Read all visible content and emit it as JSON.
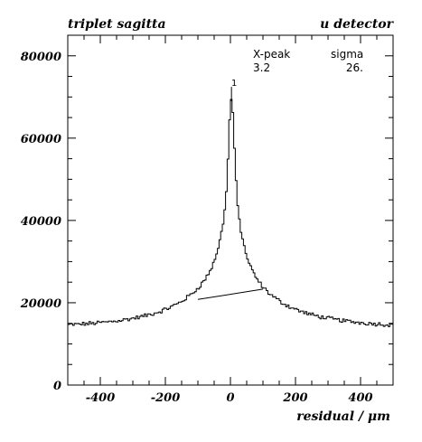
{
  "header": {
    "title_left": "triplet sagitta",
    "title_right": "u detector"
  },
  "chart_data": {
    "type": "histogram",
    "xlabel": "residual / μm",
    "ylabel": "",
    "xlim": [
      -500,
      500
    ],
    "ylim": [
      0,
      85000
    ],
    "x_ticks": [
      -400,
      -200,
      0,
      200,
      400
    ],
    "x_tick_labels": [
      "-400",
      "-200",
      "0",
      "200",
      "400"
    ],
    "y_ticks": [
      0,
      20000,
      40000,
      60000,
      80000
    ],
    "y_tick_labels": [
      "0",
      "20000",
      "40000",
      "60000",
      "80000"
    ],
    "bin_width": 5,
    "background_model": {
      "base": 13500,
      "amplitude": 11000,
      "width": 160
    },
    "peak_model": {
      "center": 3.2,
      "amplitude": 45000,
      "core_width": 8,
      "tail_width": 32
    },
    "sample_points": [
      {
        "x": -500,
        "y": 13800
      },
      {
        "x": -400,
        "y": 14500
      },
      {
        "x": -300,
        "y": 15500
      },
      {
        "x": -200,
        "y": 16500
      },
      {
        "x": -100,
        "y": 19800
      },
      {
        "x": -50,
        "y": 26000
      },
      {
        "x": -20,
        "y": 40000
      },
      {
        "x": 0,
        "y": 66000
      },
      {
        "x": 3,
        "y": 68000
      },
      {
        "x": 20,
        "y": 48000
      },
      {
        "x": 50,
        "y": 30000
      },
      {
        "x": 100,
        "y": 22000
      },
      {
        "x": 200,
        "y": 17500
      },
      {
        "x": 300,
        "y": 15800
      },
      {
        "x": 400,
        "y": 15000
      },
      {
        "x": 500,
        "y": 14800
      }
    ],
    "fit_line": {
      "x1": -100,
      "y1": 20800,
      "x2": 100,
      "y2": 23300
    },
    "peak_marker": {
      "x": 3.2,
      "y": 68500,
      "label": "1"
    },
    "stats": {
      "xpeak_label": "X-peak",
      "xpeak_value": "3.2",
      "sigma_label": "sigma",
      "sigma_value": "26."
    }
  }
}
